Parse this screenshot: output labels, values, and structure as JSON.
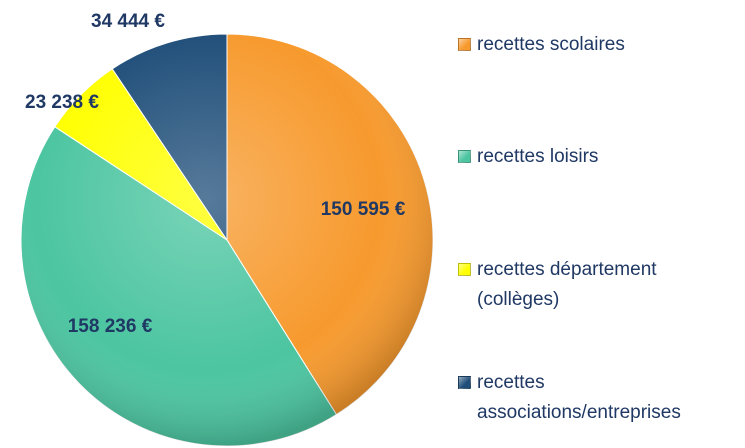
{
  "chart_data": {
    "type": "pie",
    "categories": [
      "recettes scolaires",
      "recettes loisirs",
      "recettes département (collèges)",
      "recettes associations/entreprises"
    ],
    "values": [
      150595,
      158236,
      23238,
      34444
    ],
    "value_labels": [
      "150 595 €",
      "158 236 €",
      "23 238 €",
      "34 444 €"
    ],
    "colors": [
      "#f79a2e",
      "#4cc5a0",
      "#ffff00",
      "#1f4e79"
    ],
    "legend": "right"
  }
}
